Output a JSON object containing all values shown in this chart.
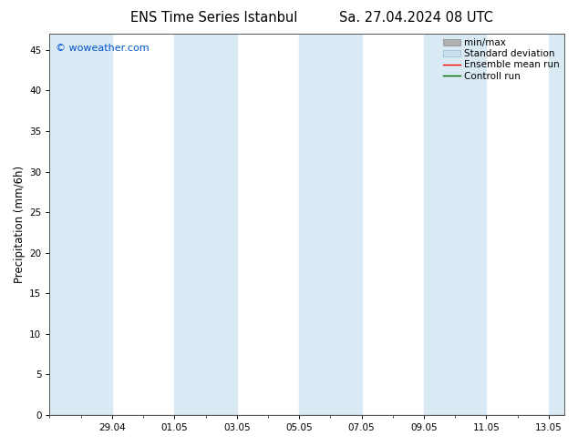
{
  "title_left": "ENS Time Series Istanbul",
  "title_right": "Sa. 27.04.2024 08 UTC",
  "ylabel": "Precipitation (mm/6h)",
  "watermark": "© woweather.com",
  "watermark_color": "#0055cc",
  "background_color": "#ffffff",
  "plot_bg_color": "#ffffff",
  "ylim": [
    0,
    47
  ],
  "yticks": [
    0,
    5,
    10,
    15,
    20,
    25,
    30,
    35,
    40,
    45
  ],
  "x_labels": [
    "29.04",
    "01.05",
    "03.05",
    "05.05",
    "07.05",
    "09.05",
    "11.05",
    "13.05"
  ],
  "x_tick_positions": [
    2,
    4,
    6,
    8,
    10,
    12,
    14,
    16
  ],
  "x_min": 0,
  "x_max": 16.5,
  "shaded_color": "#daeaf5",
  "shaded_bands": [
    [
      0,
      2
    ],
    [
      4,
      6
    ],
    [
      8,
      10
    ],
    [
      12,
      14
    ],
    [
      16,
      16.5
    ]
  ],
  "title_fontsize": 10.5,
  "axis_fontsize": 7.5,
  "ylabel_fontsize": 8.5,
  "legend_fontsize": 7.5,
  "watermark_fontsize": 8,
  "legend_items": [
    {
      "label": "min/max",
      "facecolor": "#b0b0b0",
      "edgecolor": "#888888",
      "type": "patch"
    },
    {
      "label": "Standard deviation",
      "facecolor": "#c8dff0",
      "edgecolor": "#99bbcc",
      "type": "patch"
    },
    {
      "label": "Ensemble mean run",
      "color": "#ff0000",
      "type": "line"
    },
    {
      "label": "Controll run",
      "color": "#006600",
      "type": "line"
    }
  ]
}
